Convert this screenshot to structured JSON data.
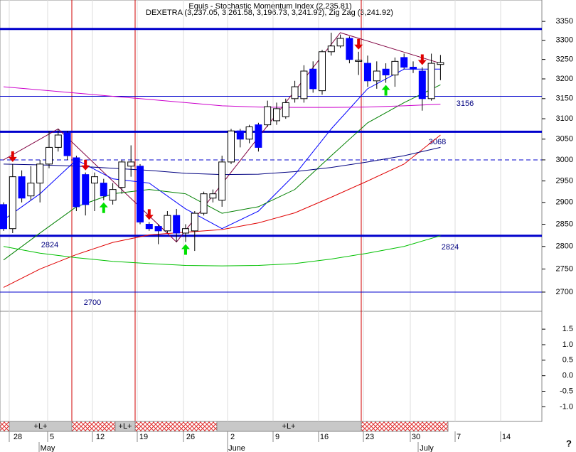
{
  "chart_data": [
    {
      "type": "candlestick",
      "title": "Equis - Stochastic Momentum Index (2,235.81)",
      "subtitle": "DEXETRA (3,237.05, 3,261.58, 3,196.73, 3,241.92), Zig Zag (3,241.92)",
      "log_scale": true,
      "ylim": [
        2659,
        3398
      ],
      "yticks": [
        2700,
        2750,
        2800,
        2850,
        2900,
        2950,
        3000,
        3050,
        3100,
        3150,
        3200,
        3250,
        3300,
        3350
      ],
      "up_color": "#ffffff",
      "down_color": "#0000ff",
      "open": [
        2895,
        2840,
        2960,
        2915,
        2945,
        2990,
        3030,
        3065,
        3005,
        2965,
        2945,
        2945,
        2905,
        2935,
        2985,
        2985,
        2850,
        2845,
        2835,
        2870,
        2830,
        2835,
        2875,
        2910,
        2905,
        2995,
        3070,
        3050,
        3085,
        3085,
        3095,
        3105,
        3150,
        3150,
        3225,
        3170,
        3270,
        3285,
        3305,
        3245,
        3240,
        3195,
        3225,
        3210,
        3255,
        3230,
        3220,
        3150,
        3237.05
      ],
      "high": [
        2900,
        2990,
        2975,
        2985,
        3000,
        3070,
        3075,
        3070,
        3010,
        2970,
        2970,
        2955,
        2945,
        3000,
        3035,
        2990,
        2855,
        2850,
        2880,
        2885,
        2850,
        2880,
        2925,
        2930,
        3010,
        3075,
        3075,
        3085,
        3090,
        3145,
        3140,
        3150,
        3195,
        3235,
        3245,
        3275,
        3320,
        3315,
        3310,
        3270,
        3260,
        3245,
        3240,
        3255,
        3265,
        3245,
        3230,
        3265,
        3261.58
      ],
      "low": [
        2835,
        2830,
        2900,
        2905,
        2900,
        2980,
        3020,
        3000,
        2880,
        2870,
        2880,
        2905,
        2895,
        2920,
        2960,
        2850,
        2835,
        2805,
        2830,
        2810,
        2810,
        2790,
        2870,
        2900,
        2890,
        2990,
        3030,
        3040,
        3020,
        3080,
        3085,
        3100,
        3140,
        3140,
        3165,
        3160,
        3260,
        3280,
        3240,
        3210,
        3180,
        3175,
        3190,
        3180,
        3225,
        3215,
        3120,
        3145,
        3196.73
      ],
      "close": [
        2840,
        2960,
        2910,
        2945,
        2990,
        3030,
        3060,
        3010,
        2890,
        2895,
        2960,
        2915,
        2930,
        2995,
        2995,
        2855,
        2840,
        2835,
        2870,
        2830,
        2840,
        2875,
        2920,
        2920,
        2995,
        3070,
        3050,
        3080,
        3030,
        3130,
        3125,
        3140,
        3180,
        3220,
        3175,
        3270,
        3285,
        3305,
        3250,
        3248,
        3195,
        3220,
        3210,
        3245,
        3230,
        3225,
        3150,
        3240,
        3241.92
      ],
      "series": [
        {
          "name": "Zig Zag",
          "color": "#800040",
          "x": [
            0,
            6,
            19,
            37,
            48
          ],
          "values": [
            3000,
            3075,
            2810,
            3320,
            3240
          ]
        },
        {
          "name": "MA short",
          "color": "#0000ff",
          "x": [
            0,
            4,
            8,
            12,
            16,
            20,
            24,
            28,
            32,
            36,
            40,
            44,
            48
          ],
          "values": [
            2860,
            2920,
            3000,
            2955,
            2945,
            2885,
            2840,
            2880,
            2965,
            3075,
            3175,
            3225,
            3225
          ]
        },
        {
          "name": "MA medium",
          "color": "#008000",
          "x": [
            0,
            4,
            8,
            12,
            16,
            20,
            24,
            28,
            32,
            36,
            40,
            44,
            48
          ],
          "values": [
            2770,
            2830,
            2890,
            2920,
            2930,
            2920,
            2875,
            2890,
            2930,
            3010,
            3090,
            3140,
            3185
          ]
        },
        {
          "name": "MA long",
          "color": "#e00000",
          "x": [
            0,
            4,
            8,
            12,
            16,
            20,
            24,
            28,
            32,
            36,
            40,
            44,
            48
          ],
          "values": [
            2710,
            2750,
            2782,
            2809,
            2826,
            2832,
            2838,
            2853,
            2876,
            2912,
            2950,
            2990,
            3060
          ]
        },
        {
          "name": "MA magenta",
          "color": "#cc00cc",
          "x": [
            0,
            4,
            8,
            12,
            16,
            20,
            24,
            28,
            32,
            36,
            40,
            44,
            48
          ],
          "values": [
            3180,
            3172,
            3164,
            3156,
            3148,
            3140,
            3132,
            3129,
            3128,
            3128,
            3129,
            3132,
            3136
          ]
        },
        {
          "name": "MA navy",
          "color": "#000080",
          "x": [
            0,
            4,
            8,
            12,
            16,
            20,
            24,
            28,
            32,
            36,
            40,
            44,
            48
          ],
          "values": [
            2990,
            2988,
            2985,
            2980,
            2975,
            2968,
            2965,
            2966,
            2972,
            2982,
            2995,
            3010,
            3030
          ]
        },
        {
          "name": "MA lower",
          "color": "#00c000",
          "x": [
            0,
            4,
            8,
            12,
            16,
            20,
            24,
            28,
            32,
            36,
            40,
            44,
            48
          ],
          "values": [
            2800,
            2785,
            2775,
            2767,
            2762,
            2758,
            2757,
            2758,
            2762,
            2772,
            2785,
            2800,
            2824
          ]
        }
      ],
      "levels": [
        {
          "value": 3330,
          "style": "thick"
        },
        {
          "value": 3156,
          "style": "thin"
        },
        {
          "value": 3068,
          "style": "thick"
        },
        {
          "value": 3000,
          "style": "dashed"
        },
        {
          "value": 2824,
          "style": "thick"
        },
        {
          "value": 2700,
          "style": "thin"
        }
      ],
      "signals": {
        "sell": [
          1,
          9,
          16,
          39,
          46
        ],
        "sell_color": "#e00000",
        "buy": [
          11,
          20,
          42
        ],
        "buy_color": "#00e000"
      },
      "x_labels": [
        "28",
        "5",
        "12",
        "19",
        "26",
        "2",
        "9",
        "16",
        "23",
        "30",
        "7",
        "14"
      ],
      "month_labels": [
        "May",
        "June",
        "July"
      ],
      "strip_labels": [
        "+L+",
        "+L+",
        "+L+"
      ],
      "corner_label": "?"
    },
    {
      "type": "line",
      "ylim": [
        -1.45,
        2.03
      ],
      "yticks": [
        1.5,
        {
          "value": 1,
          "label": "1.0"
        },
        0.5,
        {
          "value": 0,
          "label": "0.0"
        },
        -0.5,
        {
          "value": -1,
          "label": "-1.0"
        }
      ],
      "series": []
    }
  ]
}
